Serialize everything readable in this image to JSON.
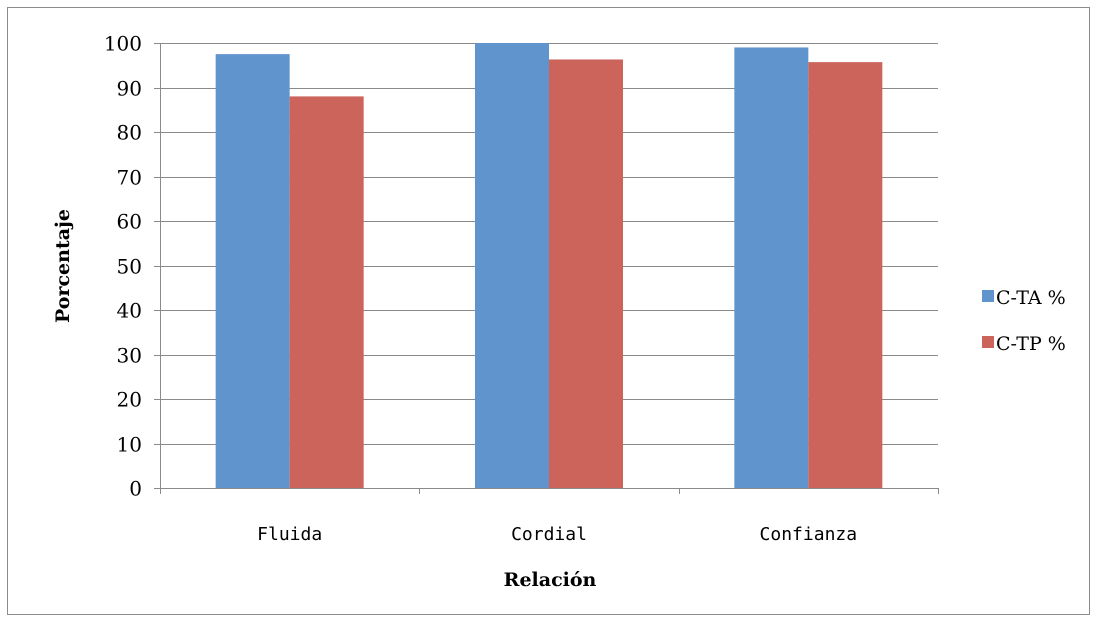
{
  "chart_data": {
    "type": "bar",
    "title": "",
    "xlabel": "Relación",
    "ylabel": "Porcentaje",
    "categories": [
      "Fluida",
      "Cordial",
      "Confianza"
    ],
    "series": [
      {
        "name": "C-TA %",
        "values": [
          97.5,
          100,
          99
        ],
        "color": "#6094cc"
      },
      {
        "name": "C-TP %",
        "values": [
          88,
          96.3,
          95.7
        ],
        "color": "#cc645c"
      }
    ],
    "ylim": [
      0,
      100
    ],
    "yticks": [
      0,
      10,
      20,
      30,
      40,
      50,
      60,
      70,
      80,
      90,
      100
    ],
    "grid": true,
    "legend": "right"
  }
}
